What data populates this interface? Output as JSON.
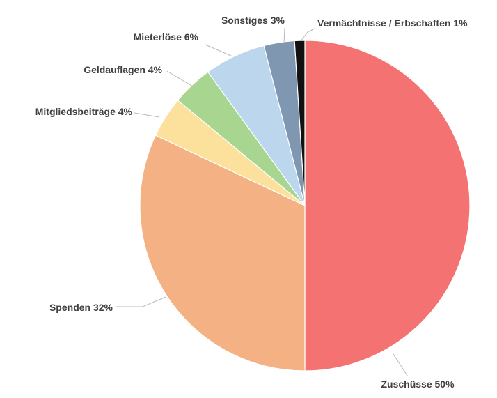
{
  "chart_data": {
    "type": "pie",
    "categories": [
      "Zuschüsse",
      "Spenden",
      "Mitgliedsbeiträge",
      "Geldauflagen",
      "Mieterlöse",
      "Sonstiges",
      "Vermächtnisse / Erbschaften"
    ],
    "values": [
      50,
      32,
      4,
      4,
      6,
      3,
      1
    ],
    "labels": [
      "Zuschüsse 50%",
      "Spenden 32%",
      "Mitgliedsbeiträge 4%",
      "Geldauflagen 4%",
      "Mieterlöse 6%",
      "Sonstiges 3%",
      "Vermächtnisse / Erbschaften 1%"
    ],
    "colors": [
      "#f47272",
      "#f3b184",
      "#fbe19c",
      "#a8d58f",
      "#bcd6ee",
      "#7f97b0",
      "#111111"
    ],
    "title": "",
    "legend": "none",
    "start_angle": "12 o'clock",
    "direction": "clockwise"
  }
}
